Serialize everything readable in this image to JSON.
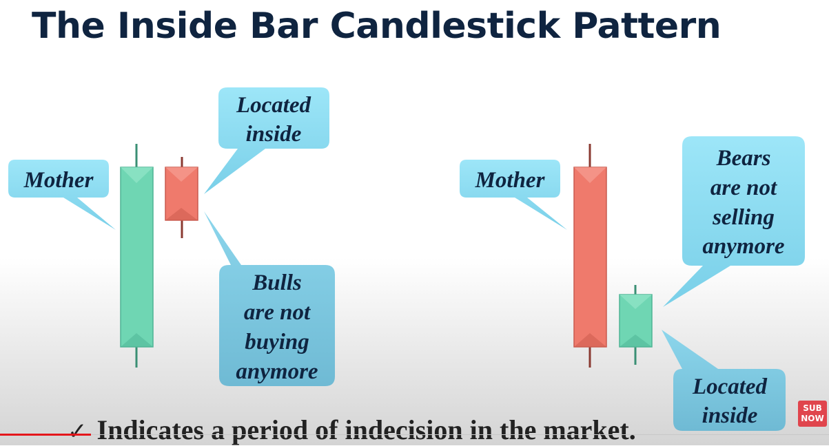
{
  "title": "The Inside Bar Candlestick Pattern",
  "left_pattern": {
    "mother_label": "Mother",
    "located_label": [
      "Located",
      "inside"
    ],
    "meaning_label": [
      "Bulls",
      "are not",
      "buying",
      "anymore"
    ],
    "mother_candle_color": "#6fd6b3",
    "inside_candle_color": "#ef7a6c"
  },
  "right_pattern": {
    "mother_label": "Mother",
    "meaning_label": [
      "Bears",
      "are not",
      "selling",
      "anymore"
    ],
    "located_label": [
      "Located",
      "inside"
    ],
    "mother_candle_color": "#ef7a6c",
    "inside_candle_color": "#6fd6b3"
  },
  "bubble_color": "#8fdff4",
  "footer": {
    "check": "✓",
    "text": "Indicates a period of indecision in the market."
  },
  "sub_badge": [
    "SUB",
    "NOW"
  ]
}
